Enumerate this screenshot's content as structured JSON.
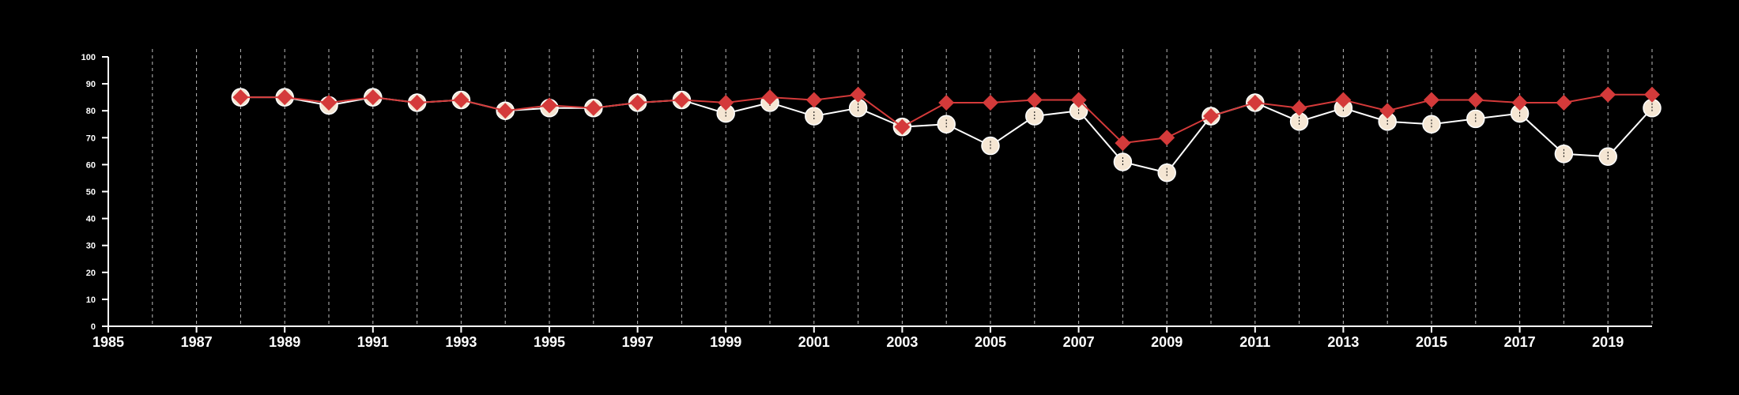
{
  "chart_data": {
    "type": "line",
    "title": "",
    "xlabel": "",
    "ylabel": "",
    "xlim": [
      1985,
      2020
    ],
    "ylim": [
      0,
      100
    ],
    "x_ticks": [
      1985,
      1987,
      1989,
      1991,
      1993,
      1995,
      1997,
      1999,
      2001,
      2003,
      2005,
      2007,
      2009,
      2011,
      2013,
      2015,
      2017,
      2019
    ],
    "y_ticks": [
      0,
      10,
      20,
      30,
      40,
      50,
      60,
      70,
      80,
      90,
      100
    ],
    "x_gridlines": "vertical dashed at every year 1986–2020",
    "background": "#000000",
    "axis_color": "#ffffff",
    "grid_color": "#bbbbbb",
    "x": [
      1988,
      1989,
      1990,
      1991,
      1992,
      1993,
      1994,
      1995,
      1996,
      1997,
      1998,
      1999,
      2000,
      2001,
      2002,
      2003,
      2004,
      2005,
      2006,
      2007,
      2008,
      2009,
      2010,
      2011,
      2012,
      2013,
      2014,
      2015,
      2016,
      2017,
      2018,
      2019,
      2020
    ],
    "series": [
      {
        "marker": "circle",
        "line_color": "#ffffff",
        "marker_color": "#f5e6d3",
        "values": [
          85,
          85,
          82,
          85,
          83,
          84,
          80,
          81,
          81,
          83,
          84,
          79,
          83,
          78,
          81,
          74,
          75,
          67,
          78,
          80,
          61,
          57,
          78,
          83,
          76,
          81,
          76,
          75,
          77,
          79,
          64,
          63,
          81
        ]
      },
      {
        "marker": "diamond",
        "line_color": "#d43a3a",
        "marker_color": "#d43a3a",
        "values": [
          85,
          85,
          83,
          85,
          83,
          84,
          80,
          82,
          81,
          83,
          84,
          83,
          85,
          84,
          86,
          74,
          83,
          83,
          84,
          84,
          68,
          70,
          78,
          83,
          81,
          84,
          80,
          84,
          84,
          83,
          83,
          86,
          86
        ]
      }
    ]
  }
}
